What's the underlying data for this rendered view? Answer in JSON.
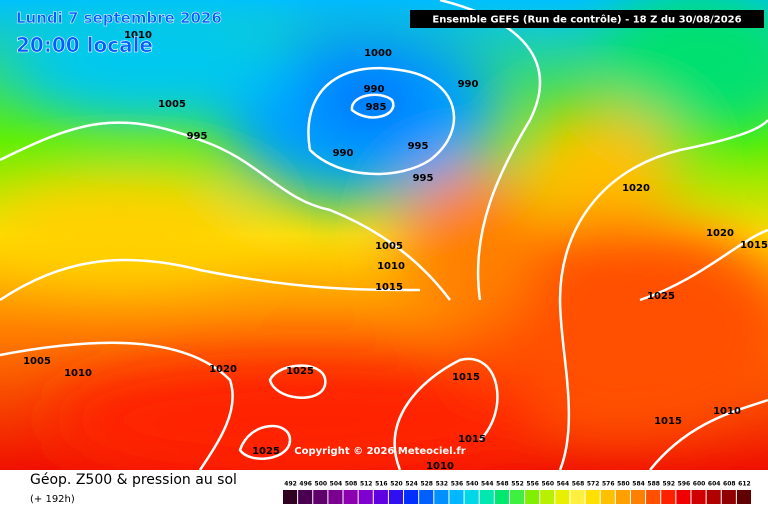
{
  "header": {
    "date": "Lundi 7 septembre 2026",
    "time": "20:00 locale",
    "model": "Ensemble GEFS  (Run de contrôle)  -  18 Z du 30/08/2026"
  },
  "isobar_labels": [
    "1010",
    "1000",
    "990",
    "985",
    "990",
    "1005",
    "995",
    "990",
    "995",
    "995",
    "1020",
    "1020",
    "1015",
    "1005",
    "1010",
    "1015",
    "1025",
    "1005",
    "1010",
    "1020",
    "1025",
    "1015",
    "1010",
    "1015",
    "1015",
    "1025",
    "1010"
  ],
  "copyright": "Copyright © 2026 Meteociel.fr",
  "footer": {
    "title": "Géop. Z500 & pression au sol",
    "lead": "(+ 192h)"
  },
  "legend": {
    "values": [
      492,
      496,
      500,
      504,
      508,
      512,
      516,
      520,
      524,
      528,
      532,
      536,
      540,
      544,
      548,
      552,
      556,
      560,
      564,
      568,
      572,
      576,
      580,
      584,
      588,
      592,
      596,
      600,
      604,
      608,
      612
    ],
    "colors": [
      "#300020",
      "#4a0050",
      "#60006a",
      "#7a0090",
      "#8c00b0",
      "#8000d0",
      "#6000e0",
      "#3010f0",
      "#0030ff",
      "#0060ff",
      "#0090ff",
      "#00b8ff",
      "#00d8e8",
      "#00e8b0",
      "#00e870",
      "#40f040",
      "#80f000",
      "#b8f000",
      "#e8f000",
      "#fff040",
      "#ffe000",
      "#ffc000",
      "#ffa000",
      "#ff8000",
      "#ff5000",
      "#ff2000",
      "#f00000",
      "#d00000",
      "#b00000",
      "#900000",
      "#600000"
    ]
  }
}
